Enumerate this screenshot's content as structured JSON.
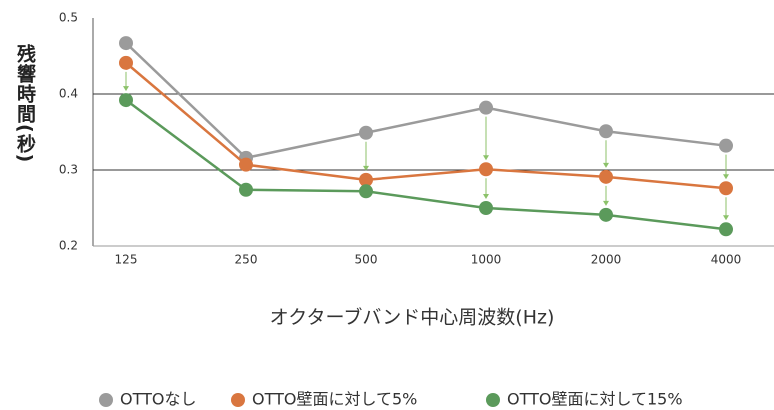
{
  "chart_data": {
    "type": "line",
    "y_label": "残響時間(秒)",
    "x_label": "オクターブバンド中心周波数(Hz)",
    "categories": [
      "125",
      "250",
      "500",
      "1000",
      "2000",
      "4000"
    ],
    "series": [
      {
        "name": "OTTOなし",
        "color": "#9b9b9b",
        "values": [
          0.467,
          0.316,
          0.349,
          0.382,
          0.351,
          0.332
        ]
      },
      {
        "name": "OTTO壁面に対して5%",
        "color": "#d9763f",
        "values": [
          0.441,
          0.307,
          0.287,
          0.301,
          0.291,
          0.276
        ]
      },
      {
        "name": "OTTO壁面に対して15%",
        "color": "#5b9a5b",
        "values": [
          0.392,
          0.274,
          0.272,
          0.25,
          0.241,
          0.222
        ]
      }
    ],
    "ylim": [
      0.2,
      0.5
    ],
    "yticks": [
      0.2,
      0.3,
      0.4,
      0.5
    ],
    "grid": true,
    "legend": "bottom"
  }
}
